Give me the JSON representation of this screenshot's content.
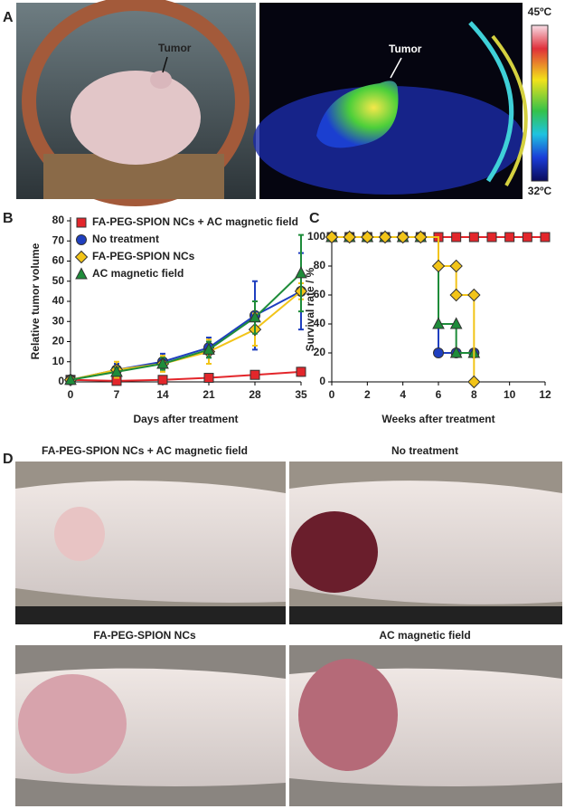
{
  "panel_a": {
    "label": "A",
    "annotations": [
      "Tumor",
      "Tumor"
    ],
    "colorbar": {
      "max_label": "45ºC",
      "min_label": "32ºC"
    }
  },
  "chart_data": [
    {
      "type": "line",
      "panel": "B",
      "xlabel": "Days after treatment",
      "ylabel": "Relative tumor volume",
      "xlim": [
        0,
        35
      ],
      "xticks": [
        0,
        7,
        14,
        21,
        28,
        35
      ],
      "ylim": [
        0,
        80
      ],
      "yticks": [
        0,
        10,
        20,
        30,
        40,
        50,
        60,
        70,
        80
      ],
      "legend": "upper left",
      "step": false,
      "series": [
        {
          "name": "FA-PEG-SPION NCs + AC magnetic field",
          "color": "#e3262b",
          "marker": "square",
          "x": [
            0,
            7,
            14,
            21,
            28,
            35
          ],
          "values": [
            1,
            0.5,
            1,
            2,
            3.5,
            5
          ],
          "errors": [
            0.3,
            0.3,
            0.5,
            0.7,
            1,
            2
          ]
        },
        {
          "name": "No treatment",
          "color": "#1f3fbf",
          "marker": "circle",
          "x": [
            0,
            7,
            14,
            21,
            28,
            35
          ],
          "values": [
            1,
            6,
            10,
            17,
            33,
            45
          ],
          "errors": [
            0.5,
            3,
            4,
            5,
            17,
            19
          ]
        },
        {
          "name": "FA-PEG-SPION NCs",
          "color": "#f2c418",
          "marker": "diamond",
          "x": [
            0,
            7,
            14,
            21,
            28,
            35
          ],
          "values": [
            1,
            6,
            9,
            15,
            26,
            45
          ],
          "errors": [
            0.5,
            4,
            4,
            6,
            8,
            4
          ]
        },
        {
          "name": "AC magnetic field",
          "color": "#1e8c3a",
          "marker": "triangle",
          "x": [
            0,
            7,
            14,
            21,
            28,
            35
          ],
          "values": [
            1,
            5,
            9,
            16,
            32,
            54
          ],
          "errors": [
            0.5,
            2,
            3,
            4,
            8,
            19
          ]
        }
      ]
    },
    {
      "type": "line",
      "panel": "C",
      "xlabel": "Weeks after treatment",
      "ylabel": "Survival rate / %",
      "xlim": [
        0,
        12
      ],
      "xticks": [
        0,
        2,
        4,
        6,
        8,
        10,
        12
      ],
      "ylim": [
        0,
        100
      ],
      "yticks": [
        0,
        20,
        40,
        60,
        80,
        100
      ],
      "step": true,
      "series": [
        {
          "color": "#e3262b",
          "marker": "square",
          "x": [
            0,
            1,
            2,
            3,
            4,
            5,
            6,
            7,
            8,
            9,
            10,
            11,
            12
          ],
          "values": [
            100,
            100,
            100,
            100,
            100,
            100,
            100,
            100,
            100,
            100,
            100,
            100,
            100
          ]
        },
        {
          "color": "#1f3fbf",
          "marker": "circle",
          "x": [
            0,
            1,
            2,
            3,
            4,
            5,
            6,
            7,
            8
          ],
          "values": [
            100,
            100,
            100,
            100,
            100,
            100,
            20,
            20,
            20
          ]
        },
        {
          "color": "#1e8c3a",
          "marker": "triangle",
          "x": [
            0,
            1,
            2,
            3,
            4,
            5,
            6,
            7,
            7,
            8
          ],
          "values": [
            100,
            100,
            100,
            100,
            100,
            100,
            40,
            40,
            20,
            20
          ]
        },
        {
          "color": "#f2c418",
          "marker": "diamond",
          "x": [
            0,
            1,
            2,
            3,
            4,
            5,
            6,
            7,
            7,
            8,
            8
          ],
          "values": [
            100,
            100,
            100,
            100,
            100,
            100,
            80,
            80,
            60,
            60,
            0
          ]
        }
      ]
    }
  ],
  "panel_d": {
    "label": "D",
    "captions": [
      "FA-PEG-SPION NCs + AC magnetic field",
      "No treatment",
      "FA-PEG-SPION NCs",
      "AC magnetic field"
    ]
  }
}
